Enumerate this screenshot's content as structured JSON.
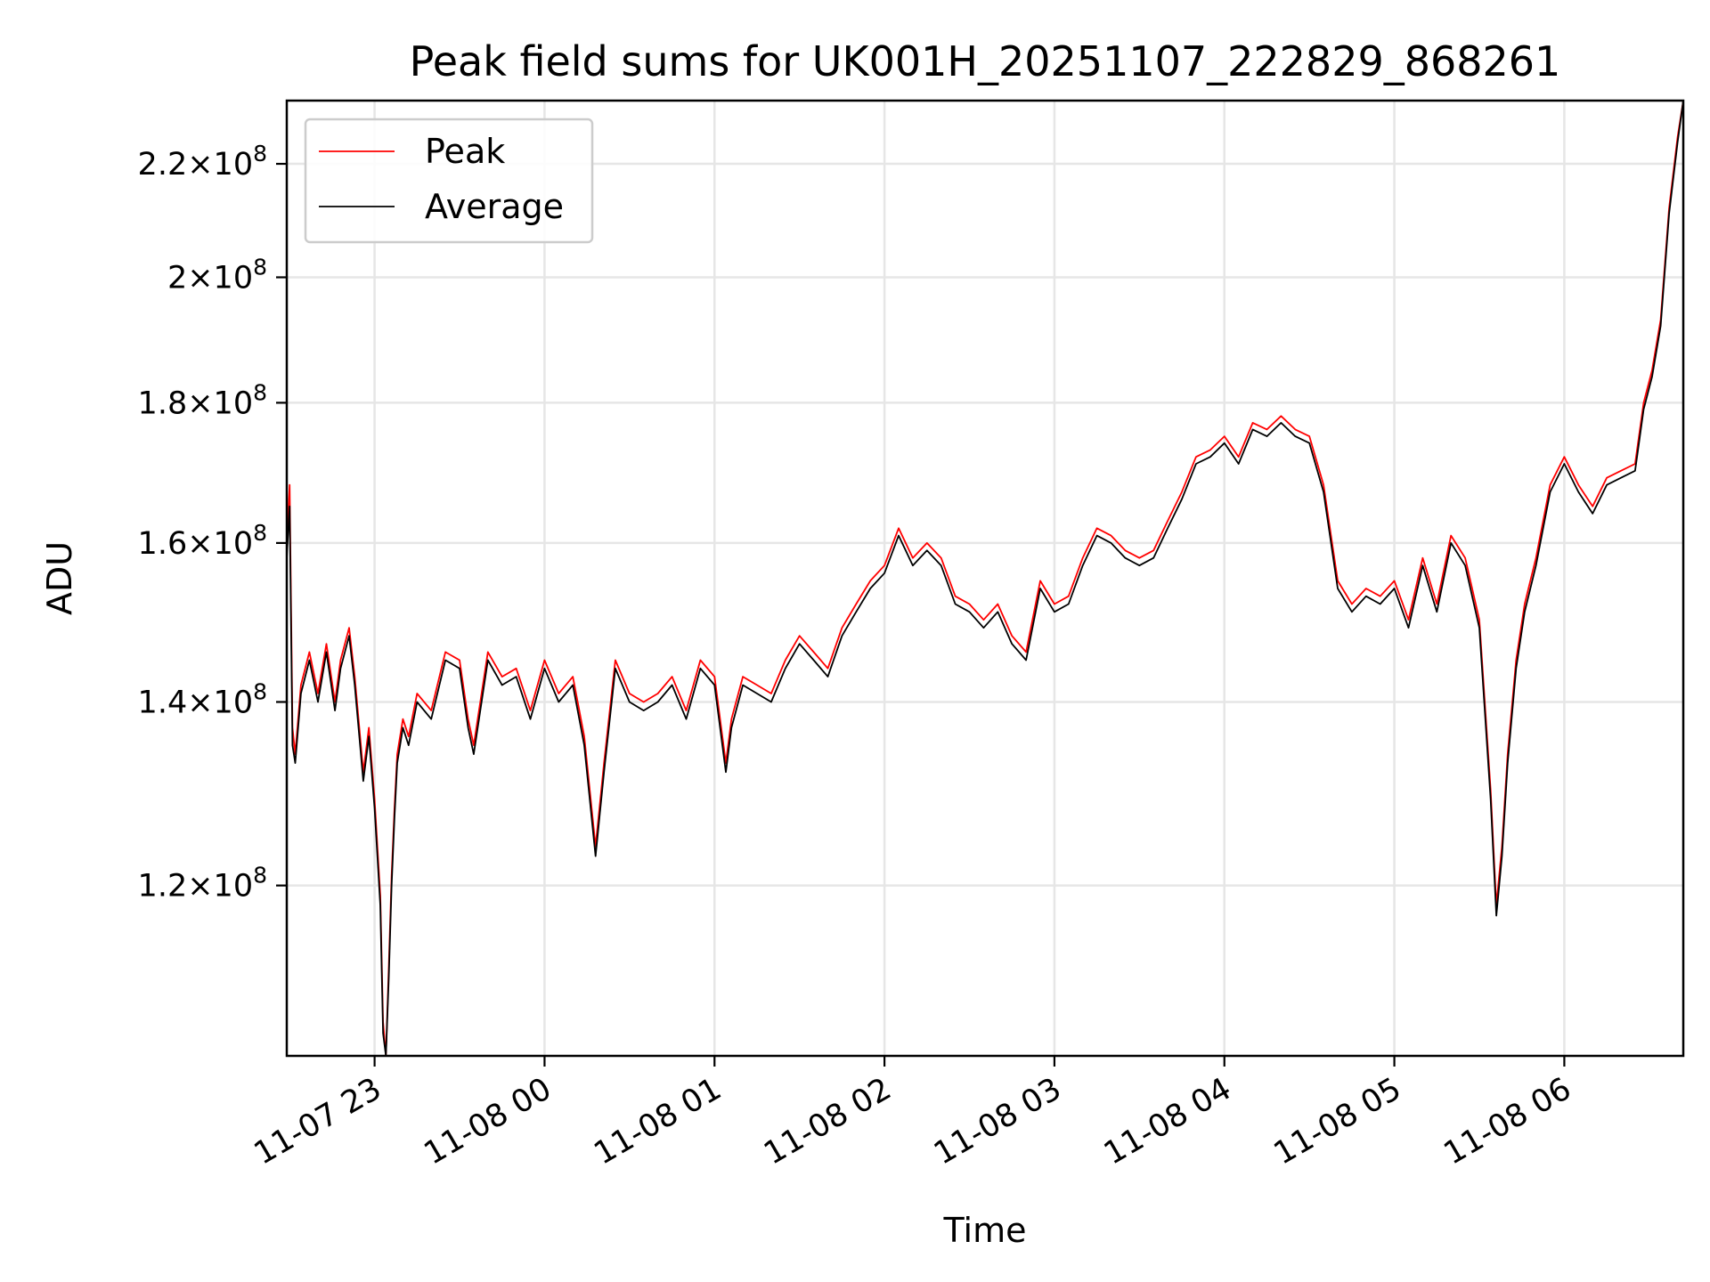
{
  "chart_data": {
    "type": "line",
    "title": "Peak field sums for UK001H_20251107_222829_868261",
    "xlabel": "Time",
    "ylabel": "ADU",
    "y_scale": "log",
    "ylim": [
      104000000,
      232000000
    ],
    "xlim": [
      "2025-11-07 22:29",
      "2025-11-08 06:42"
    ],
    "x_ticks": [
      {
        "value": "2025-11-07 23:00",
        "label": "11-07 23"
      },
      {
        "value": "2025-11-08 00:00",
        "label": "11-08 00"
      },
      {
        "value": "2025-11-08 01:00",
        "label": "11-08 01"
      },
      {
        "value": "2025-11-08 02:00",
        "label": "11-08 02"
      },
      {
        "value": "2025-11-08 03:00",
        "label": "11-08 03"
      },
      {
        "value": "2025-11-08 04:00",
        "label": "11-08 04"
      },
      {
        "value": "2025-11-08 05:00",
        "label": "11-08 05"
      },
      {
        "value": "2025-11-08 06:00",
        "label": "11-08 06"
      }
    ],
    "y_ticks": [
      {
        "value": 120000000,
        "label_mant": "1.2",
        "label_exp": "8"
      },
      {
        "value": 140000000,
        "label_mant": "1.4",
        "label_exp": "8"
      },
      {
        "value": 160000000,
        "label_mant": "1.6",
        "label_exp": "8"
      },
      {
        "value": 180000000,
        "label_mant": "1.8",
        "label_exp": "8"
      },
      {
        "value": 200000000,
        "label_mant": "2",
        "label_exp": "8"
      },
      {
        "value": 220000000,
        "label_mant": "2.2",
        "label_exp": "8"
      }
    ],
    "grid": true,
    "legend_position": "top-left",
    "series": [
      {
        "name": "Peak",
        "color": "#ff0000",
        "x": [
          "2025-11-07 22:29",
          "2025-11-07 22:30",
          "2025-11-07 22:31",
          "2025-11-07 22:32",
          "2025-11-07 22:34",
          "2025-11-07 22:37",
          "2025-11-07 22:40",
          "2025-11-07 22:43",
          "2025-11-07 22:46",
          "2025-11-07 22:48",
          "2025-11-07 22:51",
          "2025-11-07 22:53",
          "2025-11-07 22:56",
          "2025-11-07 22:58",
          "2025-11-07 23:00",
          "2025-11-07 23:02",
          "2025-11-07 23:03",
          "2025-11-07 23:04",
          "2025-11-07 23:05",
          "2025-11-07 23:06",
          "2025-11-07 23:07",
          "2025-11-07 23:08",
          "2025-11-07 23:10",
          "2025-11-07 23:12",
          "2025-11-07 23:15",
          "2025-11-07 23:20",
          "2025-11-07 23:25",
          "2025-11-07 23:30",
          "2025-11-07 23:33",
          "2025-11-07 23:35",
          "2025-11-07 23:40",
          "2025-11-07 23:45",
          "2025-11-07 23:50",
          "2025-11-07 23:55",
          "2025-11-08 00:00",
          "2025-11-08 00:05",
          "2025-11-08 00:10",
          "2025-11-08 00:14",
          "2025-11-08 00:18",
          "2025-11-08 00:21",
          "2025-11-08 00:25",
          "2025-11-08 00:30",
          "2025-11-08 00:35",
          "2025-11-08 00:40",
          "2025-11-08 00:45",
          "2025-11-08 00:50",
          "2025-11-08 00:55",
          "2025-11-08 01:00",
          "2025-11-08 01:04",
          "2025-11-08 01:06",
          "2025-11-08 01:10",
          "2025-11-08 01:15",
          "2025-11-08 01:20",
          "2025-11-08 01:25",
          "2025-11-08 01:30",
          "2025-11-08 01:35",
          "2025-11-08 01:40",
          "2025-11-08 01:45",
          "2025-11-08 01:50",
          "2025-11-08 01:55",
          "2025-11-08 02:00",
          "2025-11-08 02:05",
          "2025-11-08 02:10",
          "2025-11-08 02:15",
          "2025-11-08 02:20",
          "2025-11-08 02:25",
          "2025-11-08 02:30",
          "2025-11-08 02:35",
          "2025-11-08 02:40",
          "2025-11-08 02:45",
          "2025-11-08 02:50",
          "2025-11-08 02:55",
          "2025-11-08 03:00",
          "2025-11-08 03:05",
          "2025-11-08 03:10",
          "2025-11-08 03:15",
          "2025-11-08 03:20",
          "2025-11-08 03:25",
          "2025-11-08 03:30",
          "2025-11-08 03:35",
          "2025-11-08 03:40",
          "2025-11-08 03:45",
          "2025-11-08 03:50",
          "2025-11-08 03:55",
          "2025-11-08 04:00",
          "2025-11-08 04:05",
          "2025-11-08 04:10",
          "2025-11-08 04:15",
          "2025-11-08 04:20",
          "2025-11-08 04:25",
          "2025-11-08 04:30",
          "2025-11-08 04:35",
          "2025-11-08 04:40",
          "2025-11-08 04:45",
          "2025-11-08 04:50",
          "2025-11-08 04:55",
          "2025-11-08 05:00",
          "2025-11-08 05:05",
          "2025-11-08 05:10",
          "2025-11-08 05:15",
          "2025-11-08 05:20",
          "2025-11-08 05:25",
          "2025-11-08 05:30",
          "2025-11-08 05:34",
          "2025-11-08 05:36",
          "2025-11-08 05:38",
          "2025-11-08 05:40",
          "2025-11-08 05:43",
          "2025-11-08 05:46",
          "2025-11-08 05:50",
          "2025-11-08 05:55",
          "2025-11-08 06:00",
          "2025-11-08 06:05",
          "2025-11-08 06:10",
          "2025-11-08 06:15",
          "2025-11-08 06:20",
          "2025-11-08 06:25",
          "2025-11-08 06:28",
          "2025-11-08 06:31",
          "2025-11-08 06:34",
          "2025-11-08 06:37",
          "2025-11-08 06:40",
          "2025-11-08 06:42"
        ],
        "y": [
          160000000,
          168000000,
          137000000,
          134000000,
          142000000,
          146000000,
          141000000,
          147000000,
          140000000,
          145000000,
          149000000,
          143000000,
          132000000,
          137000000,
          129000000,
          119000000,
          107000000,
          104000000,
          112000000,
          121000000,
          128000000,
          134000000,
          138000000,
          136000000,
          141000000,
          139000000,
          146000000,
          145000000,
          138000000,
          135000000,
          146000000,
          143000000,
          144000000,
          139000000,
          145000000,
          141000000,
          143000000,
          136000000,
          124000000,
          133000000,
          145000000,
          141000000,
          140000000,
          141000000,
          143000000,
          139000000,
          145000000,
          143000000,
          133000000,
          138000000,
          143000000,
          142000000,
          141000000,
          145000000,
          148000000,
          146000000,
          144000000,
          149000000,
          152000000,
          155000000,
          157000000,
          162000000,
          158000000,
          160000000,
          158000000,
          153000000,
          152000000,
          150000000,
          152000000,
          148000000,
          146000000,
          155000000,
          152000000,
          153000000,
          158000000,
          162000000,
          161000000,
          159000000,
          158000000,
          159000000,
          163000000,
          167000000,
          172000000,
          173000000,
          175000000,
          172000000,
          177000000,
          176000000,
          178000000,
          176000000,
          175000000,
          168000000,
          155000000,
          152000000,
          154000000,
          153000000,
          155000000,
          150000000,
          158000000,
          152000000,
          161000000,
          158000000,
          150000000,
          130000000,
          118000000,
          124000000,
          134000000,
          145000000,
          152000000,
          158000000,
          168000000,
          172000000,
          168000000,
          165000000,
          169000000,
          170000000,
          171000000,
          180000000,
          185000000,
          193000000,
          212000000,
          225000000,
          232000000
        ]
      },
      {
        "name": "Average",
        "color": "#000000",
        "x": [
          "2025-11-07 22:29",
          "2025-11-07 22:30",
          "2025-11-07 22:31",
          "2025-11-07 22:32",
          "2025-11-07 22:34",
          "2025-11-07 22:37",
          "2025-11-07 22:40",
          "2025-11-07 22:43",
          "2025-11-07 22:46",
          "2025-11-07 22:48",
          "2025-11-07 22:51",
          "2025-11-07 22:53",
          "2025-11-07 22:56",
          "2025-11-07 22:58",
          "2025-11-07 23:00",
          "2025-11-07 23:02",
          "2025-11-07 23:03",
          "2025-11-07 23:04",
          "2025-11-07 23:05",
          "2025-11-07 23:06",
          "2025-11-07 23:07",
          "2025-11-07 23:08",
          "2025-11-07 23:10",
          "2025-11-07 23:12",
          "2025-11-07 23:15",
          "2025-11-07 23:20",
          "2025-11-07 23:25",
          "2025-11-07 23:30",
          "2025-11-07 23:33",
          "2025-11-07 23:35",
          "2025-11-07 23:40",
          "2025-11-07 23:45",
          "2025-11-07 23:50",
          "2025-11-07 23:55",
          "2025-11-08 00:00",
          "2025-11-08 00:05",
          "2025-11-08 00:10",
          "2025-11-08 00:14",
          "2025-11-08 00:18",
          "2025-11-08 00:21",
          "2025-11-08 00:25",
          "2025-11-08 00:30",
          "2025-11-08 00:35",
          "2025-11-08 00:40",
          "2025-11-08 00:45",
          "2025-11-08 00:50",
          "2025-11-08 00:55",
          "2025-11-08 01:00",
          "2025-11-08 01:04",
          "2025-11-08 01:06",
          "2025-11-08 01:10",
          "2025-11-08 01:15",
          "2025-11-08 01:20",
          "2025-11-08 01:25",
          "2025-11-08 01:30",
          "2025-11-08 01:35",
          "2025-11-08 01:40",
          "2025-11-08 01:45",
          "2025-11-08 01:50",
          "2025-11-08 01:55",
          "2025-11-08 02:00",
          "2025-11-08 02:05",
          "2025-11-08 02:10",
          "2025-11-08 02:15",
          "2025-11-08 02:20",
          "2025-11-08 02:25",
          "2025-11-08 02:30",
          "2025-11-08 02:35",
          "2025-11-08 02:40",
          "2025-11-08 02:45",
          "2025-11-08 02:50",
          "2025-11-08 02:55",
          "2025-11-08 03:00",
          "2025-11-08 03:05",
          "2025-11-08 03:10",
          "2025-11-08 03:15",
          "2025-11-08 03:20",
          "2025-11-08 03:25",
          "2025-11-08 03:30",
          "2025-11-08 03:35",
          "2025-11-08 03:40",
          "2025-11-08 03:45",
          "2025-11-08 03:50",
          "2025-11-08 03:55",
          "2025-11-08 04:00",
          "2025-11-08 04:05",
          "2025-11-08 04:10",
          "2025-11-08 04:15",
          "2025-11-08 04:20",
          "2025-11-08 04:25",
          "2025-11-08 04:30",
          "2025-11-08 04:35",
          "2025-11-08 04:40",
          "2025-11-08 04:45",
          "2025-11-08 04:50",
          "2025-11-08 04:55",
          "2025-11-08 05:00",
          "2025-11-08 05:05",
          "2025-11-08 05:10",
          "2025-11-08 05:15",
          "2025-11-08 05:20",
          "2025-11-08 05:25",
          "2025-11-08 05:30",
          "2025-11-08 05:34",
          "2025-11-08 05:36",
          "2025-11-08 05:38",
          "2025-11-08 05:40",
          "2025-11-08 05:43",
          "2025-11-08 05:46",
          "2025-11-08 05:50",
          "2025-11-08 05:55",
          "2025-11-08 06:00",
          "2025-11-08 06:05",
          "2025-11-08 06:10",
          "2025-11-08 06:15",
          "2025-11-08 06:20",
          "2025-11-08 06:25",
          "2025-11-08 06:28",
          "2025-11-08 06:31",
          "2025-11-08 06:34",
          "2025-11-08 06:37",
          "2025-11-08 06:40",
          "2025-11-08 06:42"
        ],
        "y": [
          158000000,
          165000000,
          135000000,
          133000000,
          141000000,
          145000000,
          140000000,
          146000000,
          139000000,
          144000000,
          148000000,
          142000000,
          131000000,
          136000000,
          128000000,
          118000000,
          106000000,
          104000000,
          111000000,
          120000000,
          127000000,
          133000000,
          137000000,
          135000000,
          140000000,
          138000000,
          145000000,
          144000000,
          137000000,
          134000000,
          145000000,
          142000000,
          143000000,
          138000000,
          144000000,
          140000000,
          142000000,
          135000000,
          123000000,
          132000000,
          144000000,
          140000000,
          139000000,
          140000000,
          142000000,
          138000000,
          144000000,
          142000000,
          132000000,
          137000000,
          142000000,
          141000000,
          140000000,
          144000000,
          147000000,
          145000000,
          143000000,
          148000000,
          151000000,
          154000000,
          156000000,
          161000000,
          157000000,
          159000000,
          157000000,
          152000000,
          151000000,
          149000000,
          151000000,
          147000000,
          145000000,
          154000000,
          151000000,
          152000000,
          157000000,
          161000000,
          160000000,
          158000000,
          157000000,
          158000000,
          162000000,
          166000000,
          171000000,
          172000000,
          174000000,
          171000000,
          176000000,
          175000000,
          177000000,
          175000000,
          174000000,
          167000000,
          154000000,
          151000000,
          153000000,
          152000000,
          154000000,
          149000000,
          157000000,
          151000000,
          160000000,
          157000000,
          149000000,
          129000000,
          117000000,
          123000000,
          133000000,
          144000000,
          151000000,
          157000000,
          167000000,
          171000000,
          167000000,
          164000000,
          168000000,
          169000000,
          170000000,
          179000000,
          184000000,
          192000000,
          211000000,
          224000000,
          232000000
        ]
      }
    ]
  }
}
